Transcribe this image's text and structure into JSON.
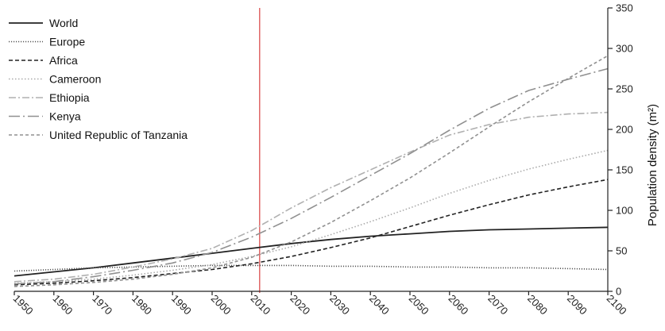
{
  "chart_data": {
    "type": "line",
    "title": "",
    "xlabel": "",
    "ylabel": "Population density (m²)",
    "x": [
      1950,
      1960,
      1970,
      1980,
      1990,
      2000,
      2010,
      2020,
      2030,
      2040,
      2050,
      2060,
      2070,
      2080,
      2090,
      2100
    ],
    "xlim": [
      1950,
      2100
    ],
    "ylim": [
      0,
      350
    ],
    "y_ticks": [
      0,
      50,
      100,
      150,
      200,
      250,
      300,
      350
    ],
    "y_axis_side": "right",
    "grid": false,
    "legend_position": "top-left",
    "reference_line": {
      "x": 2012,
      "color": "#e06666"
    },
    "series": [
      {
        "name": "World",
        "style": "solid",
        "color": "#222222",
        "values": [
          19,
          24,
          29,
          35,
          41,
          47,
          53,
          59,
          64,
          68,
          71,
          74,
          76,
          77,
          78,
          79
        ]
      },
      {
        "name": "Europe",
        "style": "dense-dot",
        "color": "#555555",
        "values": [
          25,
          27,
          29,
          30,
          31,
          32,
          32,
          32,
          31,
          31,
          30,
          30,
          29,
          29,
          28,
          27
        ]
      },
      {
        "name": "Africa",
        "style": "dash",
        "color": "#222222",
        "values": [
          8,
          10,
          13,
          17,
          22,
          27,
          34,
          43,
          54,
          66,
          80,
          94,
          107,
          119,
          129,
          138
        ]
      },
      {
        "name": "Cameroon",
        "style": "dot",
        "color": "#aaaaaa",
        "values": [
          10,
          12,
          15,
          20,
          26,
          33,
          43,
          55,
          70,
          86,
          103,
          121,
          137,
          151,
          163,
          174
        ]
      },
      {
        "name": "Ethiopia",
        "style": "dash-dot",
        "color": "#b0b0b0",
        "values": [
          12,
          15,
          21,
          30,
          40,
          53,
          75,
          103,
          128,
          150,
          172,
          193,
          206,
          215,
          219,
          221
        ]
      },
      {
        "name": "Kenya",
        "style": "long-dash-dot",
        "color": "#909090",
        "values": [
          9,
          12,
          18,
          26,
          35,
          48,
          67,
          90,
          116,
          143,
          170,
          199,
          226,
          248,
          262,
          275
        ]
      },
      {
        "name": "United Republic of Tanzania",
        "style": "short-dash",
        "color": "#909090",
        "values": [
          6,
          8,
          11,
          15,
          21,
          29,
          42,
          61,
          85,
          112,
          140,
          171,
          203,
          234,
          263,
          291
        ]
      }
    ]
  }
}
